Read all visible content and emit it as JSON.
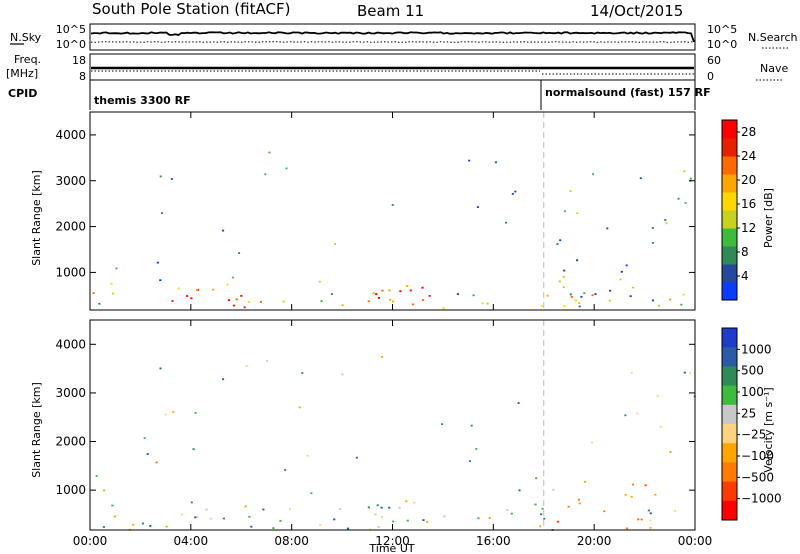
{
  "header": {
    "station": "South Pole Station (fitACF)",
    "beam": "Beam 11",
    "date": "14/Oct/2015"
  },
  "strip": {
    "nsky_label": "N.Sky",
    "nsky_ticks": [
      "10^5",
      "10^0"
    ],
    "nsearch_label": "N.Search",
    "nsearch_ticks": [
      "10^5",
      "10^0"
    ],
    "freq_label": "Freq.",
    "freq_unit": "[MHz]",
    "freq_ticks": [
      "18",
      "8"
    ],
    "nave_label": "Nave",
    "nave_ticks": [
      "60",
      "0"
    ],
    "cpid_label": "CPID",
    "cpid_1": "themis 3300 RF",
    "cpid_2": "normalsound (fast) 157 RF"
  },
  "chart_data": [
    {
      "type": "heatmap",
      "name": "power",
      "ylabel": "Slant Range [km]",
      "yticks": [
        "1000",
        "2000",
        "3000",
        "4000"
      ],
      "ylim": [
        180,
        4500
      ],
      "xlim": [
        0,
        24
      ],
      "xticks": [
        "00:00",
        "04:00",
        "08:00",
        "12:00",
        "16:00",
        "20:00",
        "00:00"
      ],
      "colorbar": {
        "label": "Power [dB]",
        "ticks": [
          "4",
          "8",
          "12",
          "16",
          "20",
          "24",
          "28"
        ],
        "colors": [
          "#0a3cff",
          "#23489c",
          "#2e8b57",
          "#3dbb3d",
          "#c8d21e",
          "#ffd700",
          "#ffa500",
          "#ff6a00",
          "#e82000",
          "#ff0000"
        ]
      },
      "mode_change_hour": 18.0
    },
    {
      "type": "heatmap",
      "name": "velocity",
      "ylabel": "Slant Range [km]",
      "yticks": [
        "1000",
        "2000",
        "3000",
        "4000"
      ],
      "ylim": [
        180,
        4500
      ],
      "xlim": [
        0,
        24
      ],
      "xticks": [
        "00:00",
        "04:00",
        "08:00",
        "12:00",
        "16:00",
        "20:00",
        "00:00"
      ],
      "xlabel": "Time UT",
      "colorbar": {
        "label": "Velocity [m s⁻¹]",
        "ticks": [
          "1000",
          "500",
          "100",
          "25",
          "−25",
          "−100",
          "−500",
          "−1000"
        ],
        "colors": [
          "#1e3cc8",
          "#2a5aa8",
          "#2e8b57",
          "#3dbb3d",
          "#c8c8c8",
          "#ffd27f",
          "#ffa500",
          "#ff7a00",
          "#ff3a00",
          "#ff0000"
        ]
      },
      "mode_change_hour": 18.0
    }
  ]
}
